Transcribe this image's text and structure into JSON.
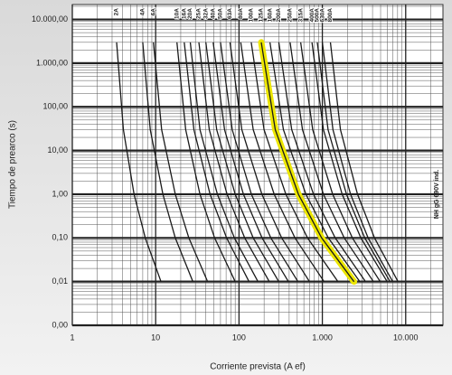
{
  "chart_data": {
    "type": "line",
    "x_label": "Corriente prevista (A ef)",
    "y_label": "Tiempo de prearco (s)",
    "annotation": "NH gG 690V ind.",
    "log_x": true,
    "log_y": true,
    "grid": true,
    "minor_grid": true,
    "highlight_color": "#ece600",
    "xlim": [
      1,
      28000
    ],
    "xticks": [
      1,
      10,
      100,
      {
        "value": 1000,
        "label": "1.000"
      },
      {
        "value": 10000,
        "label": "10.000"
      }
    ],
    "ylim": [
      0.001,
      22000
    ],
    "yticks": [
      {
        "value": 0.001,
        "label": "0,00"
      },
      {
        "value": 0.01,
        "label": "0,01"
      },
      {
        "value": 0.1,
        "label": "0,10"
      },
      {
        "value": 1,
        "label": "1,00"
      },
      {
        "value": 10,
        "label": "10,00"
      },
      {
        "value": 100,
        "label": "100,00"
      },
      {
        "value": 1000,
        "label": "1.000,00"
      },
      {
        "value": 10000,
        "label": "10.000,00"
      }
    ],
    "series": [
      {
        "name": "2A",
        "color": "#1a1a1a",
        "x": [
          3.4,
          4.1,
          5.5,
          7.5,
          11.6
        ],
        "values": [
          3000,
          30,
          1,
          0.1,
          0.01
        ]
      },
      {
        "name": "4A",
        "color": "#1a1a1a",
        "x": [
          7,
          8.6,
          12.2,
          17.2,
          28
        ],
        "values": [
          3000,
          30,
          1,
          0.1,
          0.01
        ]
      },
      {
        "name": "6A",
        "color": "#1a1a1a",
        "x": [
          9.4,
          11.8,
          17.2,
          25,
          42
        ],
        "values": [
          3000,
          30,
          1,
          0.1,
          0.01
        ]
      },
      {
        "name": "10A",
        "color": "#1a1a1a",
        "x": [
          18,
          22.9,
          34,
          51,
          90
        ],
        "values": [
          3000,
          30,
          1,
          0.1,
          0.01
        ]
      },
      {
        "name": "16A",
        "color": "#1a1a1a",
        "x": [
          22,
          28.8,
          45,
          71,
          132
        ],
        "values": [
          3000,
          30,
          1,
          0.1,
          0.01
        ]
      },
      {
        "name": "20A",
        "color": "#1a1a1a",
        "x": [
          26,
          34,
          55,
          88,
          169
        ],
        "values": [
          3000,
          30,
          1,
          0.1,
          0.01
        ]
      },
      {
        "name": "25A",
        "color": "#1a1a1a",
        "x": [
          33,
          44,
          72,
          117,
          231
        ],
        "values": [
          3000,
          30,
          1,
          0.1,
          0.01
        ]
      },
      {
        "name": "32A",
        "color": "#1a1a1a",
        "x": [
          40,
          54,
          90,
          148,
          300
        ],
        "values": [
          3000,
          30,
          1,
          0.1,
          0.01
        ]
      },
      {
        "name": "40A",
        "color": "#1a1a1a",
        "x": [
          49,
          67,
          113,
          189,
          392
        ],
        "values": [
          3000,
          30,
          1,
          0.1,
          0.01
        ]
      },
      {
        "name": "50A",
        "color": "#1a1a1a",
        "x": [
          60,
          83,
          141,
          241,
          510
        ],
        "values": [
          3000,
          30,
          1,
          0.1,
          0.01
        ]
      },
      {
        "name": "63A",
        "color": "#1a1a1a",
        "x": [
          78,
          108,
          188,
          325,
          702
        ],
        "values": [
          3000,
          30,
          1,
          0.1,
          0.01
        ]
      },
      {
        "name": "80A",
        "color": "#1a1a1a",
        "x": [
          105,
          148,
          264,
          469,
          1050
        ],
        "values": [
          3000,
          30,
          1,
          0.1,
          0.01
        ]
      },
      {
        "name": "100A",
        "color": "#1a1a1a",
        "x": [
          140,
          200,
          365,
          665,
          1540
        ],
        "values": [
          3000,
          30,
          1,
          0.1,
          0.01
        ]
      },
      {
        "name": "125A",
        "color": "#1a1a1a",
        "highlight": true,
        "x": [
          185,
          272,
          516,
          980,
          2400
        ],
        "values": [
          3000,
          30,
          1,
          0.1,
          0.01
        ]
      },
      {
        "name": "160A",
        "color": "#1a1a1a",
        "x": [
          235,
          341,
          635,
          1180,
          2820
        ],
        "values": [
          3000,
          30,
          1,
          0.1,
          0.01
        ]
      },
      {
        "name": "200A",
        "color": "#1a1a1a",
        "x": [
          300,
          429,
          783,
          1425,
          3300
        ],
        "values": [
          3000,
          30,
          1,
          0.1,
          0.01
        ]
      },
      {
        "name": "250A",
        "color": "#1a1a1a",
        "x": [
          410,
          578,
          1030,
          1830,
          4100
        ],
        "values": [
          3000,
          30,
          1,
          0.1,
          0.01
        ]
      },
      {
        "name": "315A",
        "color": "#1a1a1a",
        "x": [
          550,
          765,
          1330,
          2290,
          4950
        ],
        "values": [
          3000,
          30,
          1,
          0.1,
          0.01
        ]
      },
      {
        "name": "400A",
        "color": "#1a1a1a",
        "x": [
          750,
          1030,
          1730,
          2900,
          6000
        ],
        "values": [
          3000,
          30,
          1,
          0.1,
          0.01
        ]
      },
      {
        "name": "500A",
        "color": "#1a1a1a",
        "x": [
          870,
          1170,
          1950,
          3230,
          6500
        ],
        "values": [
          3000,
          30,
          1,
          0.1,
          0.01
        ]
      },
      {
        "name": "630A",
        "color": "#1a1a1a",
        "x": [
          1000,
          1340,
          2180,
          3540,
          7000
        ],
        "values": [
          3000,
          30,
          1,
          0.1,
          0.01
        ]
      },
      {
        "name": "800A",
        "color": "#1a1a1a",
        "x": [
          1250,
          1650,
          2640,
          4230,
          8100
        ],
        "values": [
          3000,
          30,
          1,
          0.1,
          0.01
        ]
      }
    ]
  }
}
